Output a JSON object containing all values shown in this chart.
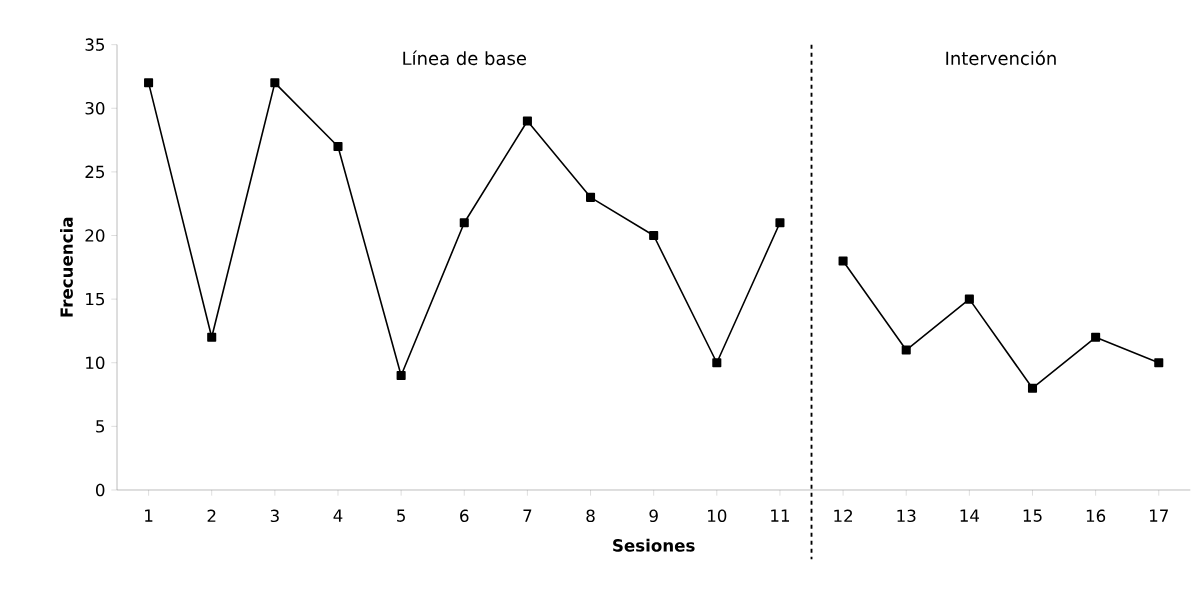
{
  "chart_data": {
    "type": "line",
    "xlabel": "Sesiones",
    "ylabel": "Frecuencia",
    "annotations": [
      "Línea de base",
      "Intervención"
    ],
    "x": [
      1,
      2,
      3,
      4,
      5,
      6,
      7,
      8,
      9,
      10,
      11,
      12,
      13,
      14,
      15,
      16,
      17
    ],
    "series": [
      {
        "color": "#000000",
        "values": [
          32,
          12,
          32,
          27,
          9,
          21,
          29,
          23,
          20,
          10,
          21,
          null,
          null,
          null,
          null,
          null,
          null
        ]
      },
      {
        "color": "#000000",
        "values": [
          null,
          null,
          null,
          null,
          null,
          null,
          null,
          null,
          null,
          null,
          null,
          18,
          11,
          15,
          8,
          12,
          10
        ]
      }
    ],
    "xlim": [
      0.5,
      17.5
    ],
    "xticks": [
      1,
      2,
      3,
      4,
      5,
      6,
      7,
      8,
      9,
      10,
      11,
      12,
      13,
      14,
      15,
      16,
      17
    ],
    "ylim": [
      0,
      35
    ],
    "yticks": [
      0,
      5,
      10,
      15,
      20,
      25,
      30,
      35
    ],
    "ref_lines": [
      {
        "axis": "x",
        "value": 11.5,
        "color": "#000000",
        "line_style": "dashed"
      }
    ],
    "marker": "square",
    "line_style": "solid"
  }
}
